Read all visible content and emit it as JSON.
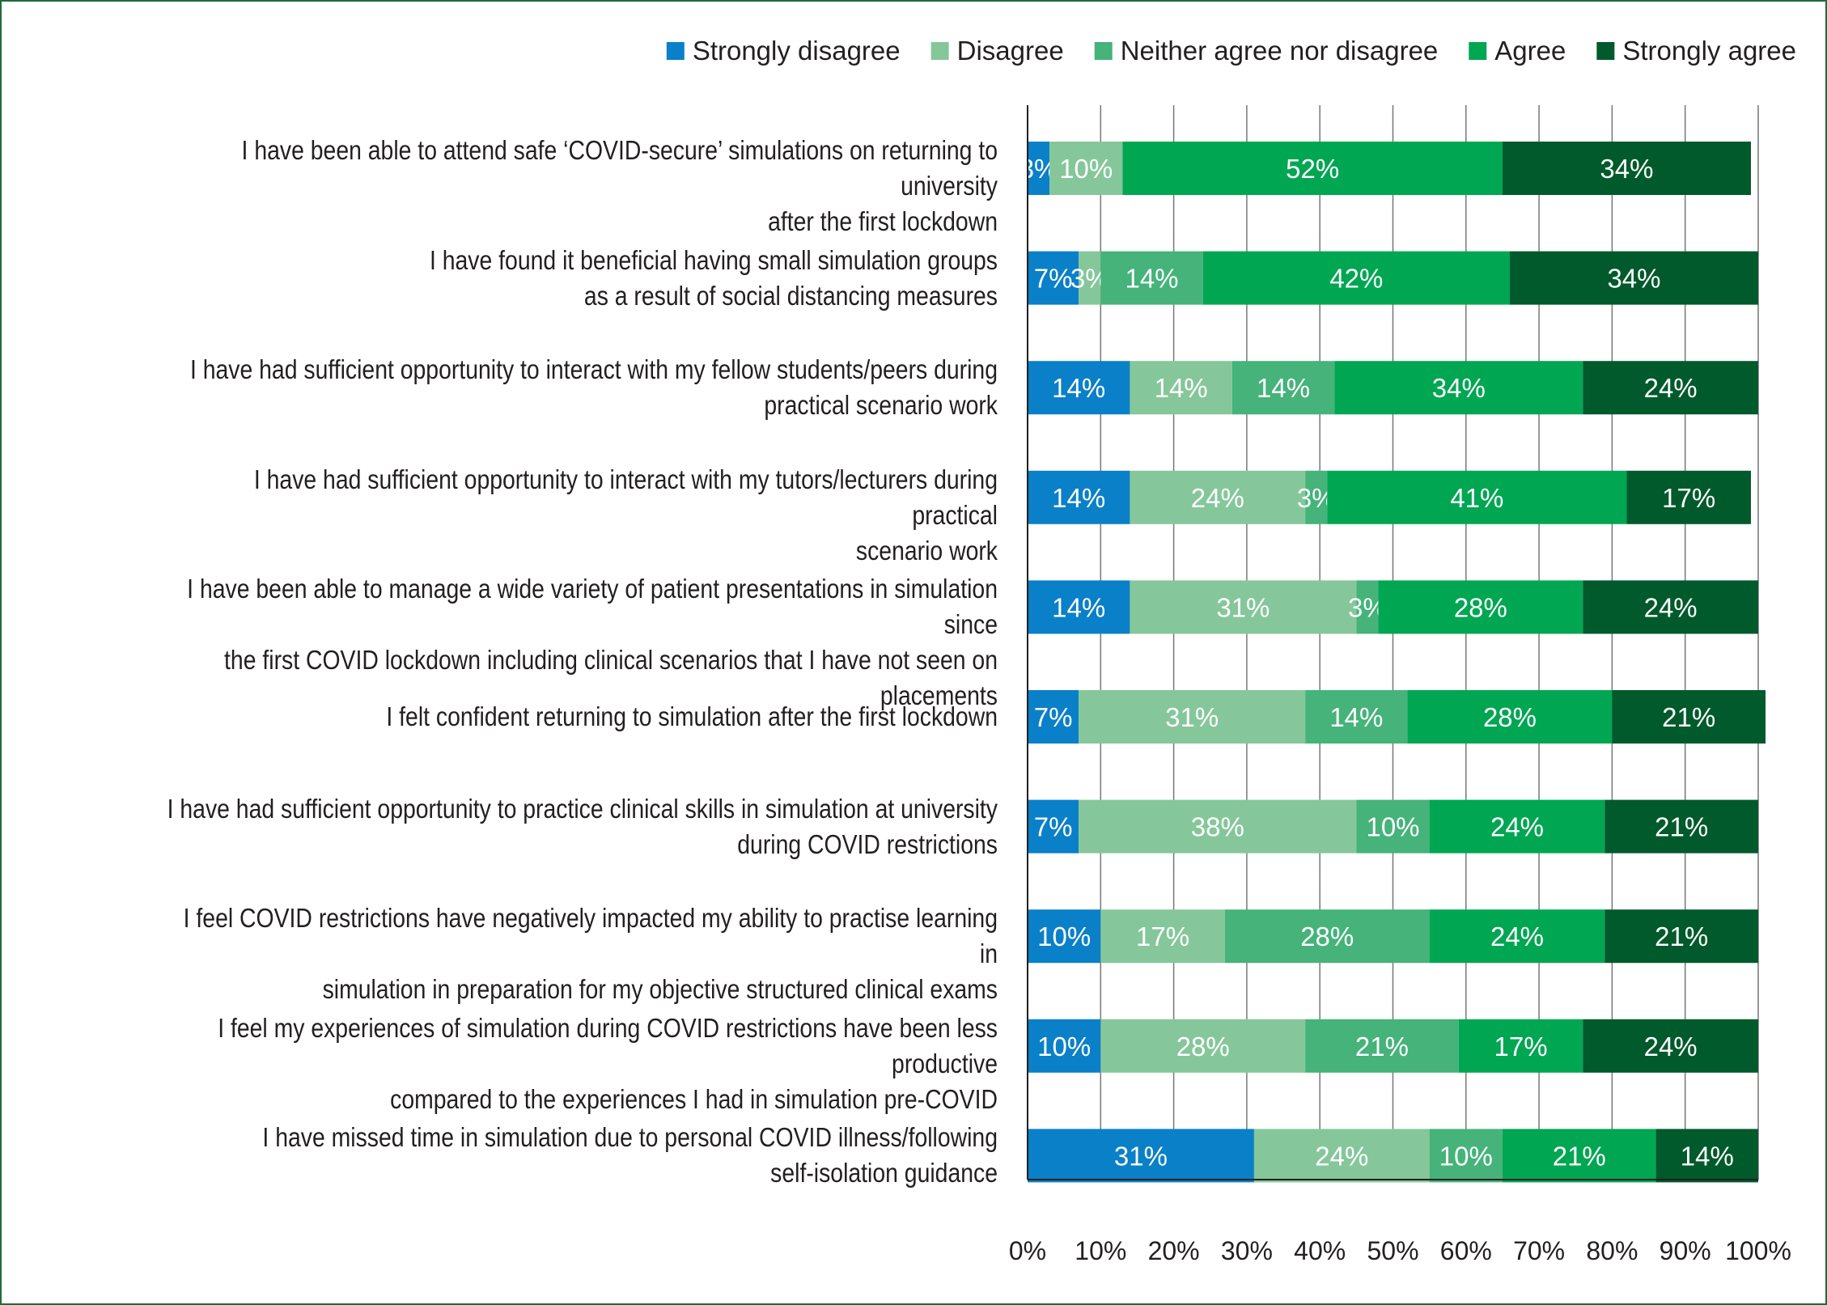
{
  "chart_data": {
    "type": "bar",
    "orientation": "horizontal",
    "stacked": true,
    "title": "",
    "xlabel": "",
    "ylabel": "",
    "xlim": [
      0,
      100
    ],
    "x_ticks": [
      "0%",
      "10%",
      "20%",
      "30%",
      "40%",
      "50%",
      "60%",
      "70%",
      "80%",
      "90%",
      "100%"
    ],
    "grid": "vertical",
    "legend_position": "top-right",
    "categories": [
      "I have been able to attend safe ‘COVID-secure’ simulations on returning to university\nafter the first lockdown",
      "I have found it beneficial having small simulation groups\nas a result of social distancing measures",
      "I have had sufficient opportunity to interact with my fellow students/peers during\npractical scenario work",
      "I have had sufficient opportunity to interact with my tutors/lecturers during practical\nscenario work",
      "I have been able to manage a wide variety of patient presentations in simulation since\nthe first COVID lockdown including clinical scenarios that I have not seen on placements",
      "I felt confident returning to simulation after the first lockdown",
      "I have had sufficient opportunity to practice clinical skills in simulation at university\nduring COVID restrictions",
      "I feel COVID restrictions have negatively impacted my ability to practise learning in\nsimulation in preparation for my objective structured clinical exams",
      "I feel my experiences of simulation during COVID restrictions have been less productive\ncompared to the experiences I had in simulation pre-COVID",
      "I have missed time in simulation due to personal COVID illness/following\nself-isolation guidance"
    ],
    "series": [
      {
        "name": "Strongly disagree",
        "color": "#0a80c8",
        "values": [
          3,
          7,
          14,
          14,
          14,
          7,
          7,
          10,
          10,
          31
        ]
      },
      {
        "name": "Disagree",
        "color": "#85c79a",
        "values": [
          10,
          3,
          14,
          24,
          31,
          31,
          38,
          17,
          28,
          24
        ]
      },
      {
        "name": "Neither agree nor disagree",
        "color": "#45b37a",
        "values": [
          0,
          14,
          14,
          3,
          3,
          14,
          10,
          28,
          21,
          10
        ]
      },
      {
        "name": "Agree",
        "color": "#00a652",
        "values": [
          52,
          42,
          34,
          41,
          28,
          28,
          24,
          24,
          17,
          21
        ]
      },
      {
        "name": "Strongly agree",
        "color": "#005a2b",
        "values": [
          34,
          34,
          24,
          17,
          24,
          21,
          21,
          21,
          24,
          14
        ]
      }
    ]
  }
}
